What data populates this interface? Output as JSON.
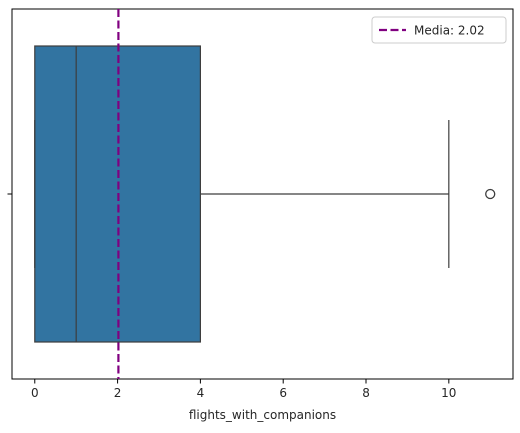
{
  "chart_data": {
    "type": "boxplot",
    "orientation": "horizontal",
    "xlabel": "flights_with_companions",
    "ylabel": "",
    "xlim": [
      -0.55,
      11.55
    ],
    "xticks": [
      0,
      2,
      4,
      6,
      8,
      10
    ],
    "box": {
      "min": 0,
      "q1": 0,
      "median": 1,
      "q3": 4,
      "whisker_high": 10,
      "outliers": [
        11
      ]
    },
    "mean_line": {
      "value": 2.02,
      "label": "Media: 2.02",
      "color": "#800080",
      "style": "dashed"
    },
    "colors": {
      "box_fill": "#3274a1",
      "box_edge": "#3d3d3d",
      "whisker": "#3d3d3d",
      "axes": "#000000"
    },
    "grid": false,
    "legend_position": "top-right"
  }
}
